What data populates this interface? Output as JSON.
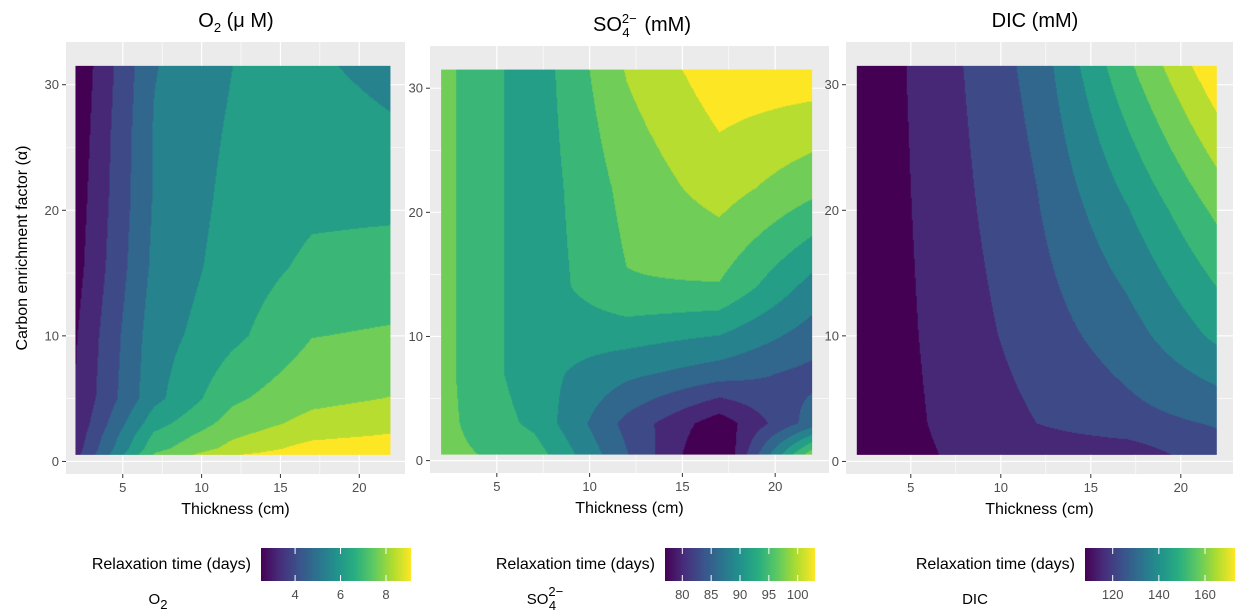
{
  "figure": {
    "y_axis_label": "Carbon enrichment factor (α)"
  },
  "chart_data": [
    {
      "type": "contour",
      "title": {
        "base": "O",
        "sub": "2",
        "sup": "",
        "rest": " (μ M)"
      },
      "xlabel": "Thickness (cm)",
      "ylabel": "Carbon enrichment factor (α)",
      "x_ticks": [
        5,
        10,
        15,
        20
      ],
      "y_ticks": [
        0,
        10,
        20,
        30
      ],
      "xlim": [
        1.4,
        22.9
      ],
      "ylim": [
        -1.0,
        33.4
      ],
      "x": [
        2,
        7,
        12,
        17,
        22
      ],
      "y": [
        0.5,
        1,
        2,
        3,
        5,
        10,
        15.5,
        21,
        26,
        31.5
      ],
      "z": [
        [
          3.6,
          7.2,
          8.4,
          8.9,
          9.0
        ],
        [
          3.5,
          6.9,
          8.0,
          8.7,
          8.9
        ],
        [
          3.4,
          6.6,
          7.7,
          8.3,
          8.5
        ],
        [
          3.3,
          6.2,
          7.4,
          8.0,
          8.2
        ],
        [
          3.2,
          5.6,
          7.0,
          7.6,
          7.8
        ],
        [
          3.1,
          5.5,
          6.3,
          7.1,
          7.2
        ],
        [
          2.9,
          5.3,
          6.1,
          6.6,
          6.7
        ],
        [
          2.8,
          5.2,
          6.0,
          6.3,
          6.3
        ],
        [
          2.7,
          5.2,
          5.9,
          6.1,
          5.9
        ],
        [
          2.6,
          5.1,
          5.8,
          5.9,
          5.6
        ]
      ],
      "zlim": [
        2.5,
        9.1
      ],
      "legend": {
        "title": "Relaxation time (days)",
        "label": {
          "base": "O",
          "sub": "2",
          "sup": ""
        },
        "ticks": [
          4,
          6,
          8
        ]
      }
    },
    {
      "type": "contour",
      "title": {
        "base": "SO",
        "sub": "4",
        "sup": "2−",
        "rest": " (mM)"
      },
      "xlabel": "Thickness (cm)",
      "ylabel": "",
      "x_ticks": [
        5,
        10,
        15,
        20
      ],
      "y_ticks": [
        0,
        10,
        20,
        30
      ],
      "xlim": [
        1.4,
        22.9
      ],
      "ylim": [
        -1.0,
        33.4
      ],
      "x": [
        2,
        7,
        12,
        17,
        22
      ],
      "y": [
        0.5,
        3,
        7,
        14,
        22,
        31.5
      ],
      "z": [
        [
          96,
          94,
          85,
          76,
          97
        ],
        [
          96,
          92,
          84,
          78,
          86
        ],
        [
          96,
          91,
          88,
          86,
          84
        ],
        [
          96,
          91,
          95,
          95,
          89
        ],
        [
          96,
          91,
          96,
          99,
          96
        ],
        [
          96,
          91,
          98,
          102,
          102
        ]
      ],
      "zlim": [
        77,
        103
      ],
      "legend": {
        "title": "Relaxation time (days)",
        "label": {
          "base": "SO",
          "sub": "4",
          "sup": "2−"
        },
        "ticks": [
          80,
          85,
          90,
          95,
          100
        ]
      }
    },
    {
      "type": "contour",
      "title": {
        "base": "DIC (mM)",
        "sub": "",
        "sup": "",
        "rest": ""
      },
      "xlabel": "Thickness (cm)",
      "ylabel": "",
      "x_ticks": [
        5,
        10,
        15,
        20
      ],
      "y_ticks": [
        0,
        10,
        20,
        30
      ],
      "xlim": [
        1.4,
        22.9
      ],
      "ylim": [
        -1.0,
        33.4
      ],
      "x": [
        2,
        7,
        12,
        17,
        22
      ],
      "y": [
        0.5,
        3,
        10,
        20,
        31.5
      ],
      "z": [
        [
          109,
          115,
          117,
          117,
          125
        ],
        [
          109,
          116,
          121,
          125,
          128
        ],
        [
          109,
          117,
          124,
          131,
          142
        ],
        [
          109,
          118,
          127,
          140,
          155
        ],
        [
          109,
          119,
          130,
          152,
          172
        ]
      ],
      "zlim": [
        108,
        173
      ],
      "legend": {
        "title": "Relaxation time (days)",
        "label": {
          "base": "DIC",
          "sub": "",
          "sup": ""
        },
        "ticks": [
          120,
          140,
          160
        ]
      }
    }
  ]
}
